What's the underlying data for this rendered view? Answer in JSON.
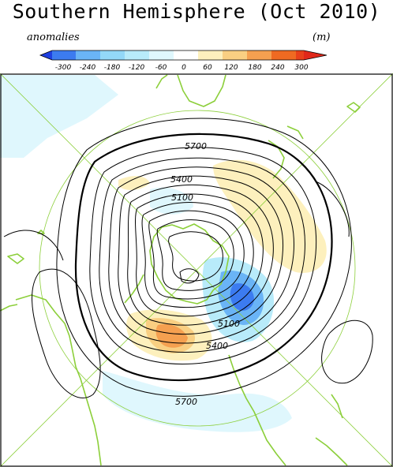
{
  "title": "Southern Hemisphere (Oct 2010)",
  "legend": {
    "left_label": "anomalies",
    "right_label": "(m)",
    "ticks": [
      "-300",
      "-240",
      "-180",
      "-120",
      "-60",
      "0",
      "60",
      "120",
      "180",
      "240",
      "300"
    ],
    "colors": [
      "#1f3fe0",
      "#3c7bf0",
      "#6ab4f6",
      "#93d8f8",
      "#c6f0fb",
      "#ffffff",
      "#fde9a8",
      "#f9c97a",
      "#f5a050",
      "#ef6a22",
      "#e0281a"
    ]
  },
  "map": {
    "contour_labels": [
      "5700",
      "5400",
      "5100",
      "5100",
      "5400",
      "5700"
    ],
    "coastline_color": "#8ccf3a",
    "contour_color": "#000000"
  }
}
